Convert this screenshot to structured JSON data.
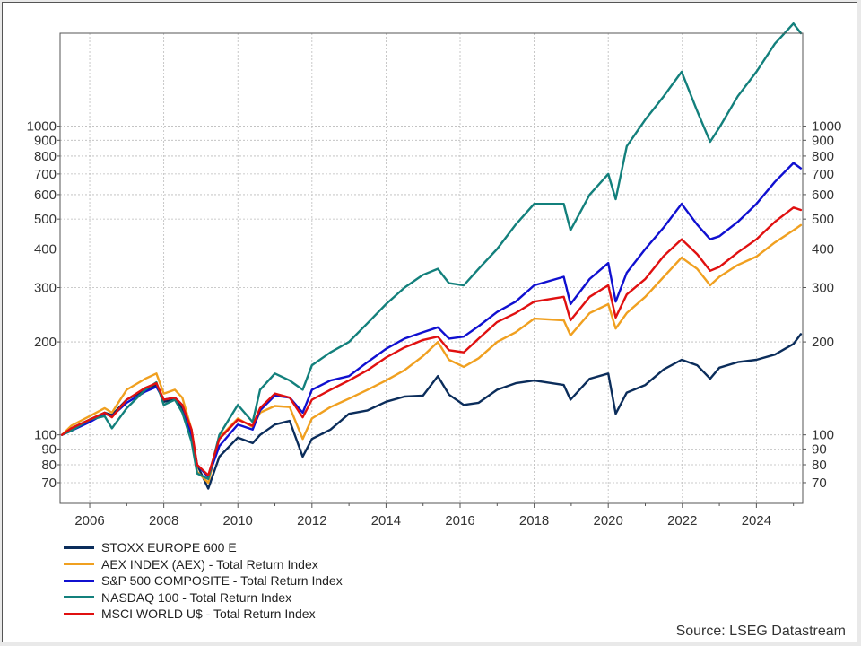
{
  "chart_data": {
    "type": "line",
    "title": "",
    "xlabel": "",
    "ylabel": "",
    "y_scale": "log",
    "xlim": [
      2005.2,
      2025.25
    ],
    "ylim": [
      60,
      2000
    ],
    "grid": true,
    "legend_position": "bottom-left",
    "x_ticks": [
      2006,
      2008,
      2010,
      2012,
      2014,
      2016,
      2018,
      2020,
      2022,
      2024
    ],
    "x_tick_labels": [
      "2006",
      "2008",
      "2010",
      "2012",
      "2014",
      "2016",
      "2018",
      "2020",
      "2022",
      "2024"
    ],
    "y_ticks": [
      70,
      80,
      90,
      100,
      200,
      300,
      400,
      500,
      600,
      700,
      800,
      900,
      1000
    ],
    "y_tick_labels": [
      "70",
      "80",
      "90",
      "100",
      "200",
      "300",
      "400",
      "500",
      "600",
      "700",
      "800",
      "900",
      "1000"
    ],
    "x": [
      2005.25,
      2005.5,
      2006.0,
      2006.4,
      2006.6,
      2007.0,
      2007.5,
      2007.8,
      2008.0,
      2008.3,
      2008.5,
      2008.75,
      2008.9,
      2009.2,
      2009.5,
      2010.0,
      2010.4,
      2010.6,
      2011.0,
      2011.4,
      2011.75,
      2012.0,
      2012.5,
      2013.0,
      2013.5,
      2014.0,
      2014.5,
      2015.0,
      2015.4,
      2015.7,
      2016.1,
      2016.5,
      2017.0,
      2017.5,
      2018.0,
      2018.8,
      2018.98,
      2019.5,
      2020.0,
      2020.2,
      2020.5,
      2021.0,
      2021.5,
      2021.98,
      2022.4,
      2022.75,
      2023.0,
      2023.5,
      2024.0,
      2024.5,
      2025.0,
      2025.2
    ],
    "series": [
      {
        "name": "STOXX EUROPE 600 E",
        "color": "#0b2d5b",
        "values": [
          100,
          105,
          112,
          118,
          116,
          130,
          140,
          145,
          128,
          130,
          122,
          100,
          80,
          67,
          85,
          98,
          94,
          100,
          108,
          111,
          85,
          97,
          104,
          117,
          120,
          128,
          133,
          134,
          155,
          135,
          125,
          127,
          140,
          147,
          150,
          145,
          130,
          152,
          158,
          117,
          137,
          145,
          163,
          175,
          168,
          152,
          165,
          172,
          175,
          182,
          197,
          212
        ]
      },
      {
        "name": "AEX INDEX (AEX) - Total Return Index",
        "color": "#f0a020",
        "values": [
          100,
          107,
          115,
          122,
          118,
          140,
          152,
          158,
          136,
          140,
          132,
          104,
          76,
          70,
          98,
          113,
          106,
          118,
          124,
          123,
          97,
          113,
          123,
          131,
          140,
          150,
          162,
          180,
          200,
          175,
          166,
          177,
          200,
          215,
          238,
          235,
          210,
          248,
          265,
          221,
          248,
          280,
          325,
          375,
          345,
          305,
          325,
          355,
          378,
          420,
          460,
          478
        ]
      },
      {
        "name": "S&P 500 COMPOSITE - Total Return Index",
        "color": "#1010d0",
        "values": [
          100,
          103,
          110,
          117,
          115,
          127,
          138,
          143,
          130,
          132,
          125,
          100,
          80,
          73,
          92,
          108,
          104,
          120,
          134,
          132,
          118,
          140,
          150,
          155,
          172,
          190,
          205,
          215,
          223,
          205,
          208,
          225,
          250,
          270,
          305,
          325,
          265,
          320,
          360,
          270,
          335,
          400,
          470,
          560,
          480,
          430,
          440,
          490,
          560,
          660,
          760,
          730
        ]
      },
      {
        "name": "NASDAQ 100 - Total Return Index",
        "color": "#13807c",
        "values": [
          100,
          103,
          112,
          115,
          105,
          122,
          140,
          148,
          125,
          130,
          118,
          95,
          75,
          72,
          100,
          125,
          110,
          140,
          158,
          150,
          140,
          168,
          185,
          200,
          230,
          265,
          300,
          330,
          345,
          310,
          305,
          345,
          400,
          480,
          560,
          560,
          460,
          600,
          700,
          580,
          860,
          1050,
          1250,
          1500,
          1120,
          890,
          990,
          1250,
          1500,
          1850,
          2150,
          2000
        ]
      },
      {
        "name": "MSCI WORLD U$ - Total Return Index",
        "color": "#e01010",
        "values": [
          100,
          105,
          112,
          118,
          114,
          130,
          142,
          147,
          130,
          132,
          125,
          104,
          80,
          74,
          97,
          112,
          107,
          122,
          136,
          132,
          114,
          130,
          140,
          150,
          162,
          178,
          192,
          203,
          208,
          188,
          185,
          205,
          232,
          248,
          270,
          280,
          235,
          280,
          305,
          240,
          285,
          320,
          380,
          430,
          385,
          340,
          350,
          390,
          430,
          490,
          545,
          535
        ]
      }
    ],
    "source": "Source: LSEG Datastream"
  }
}
